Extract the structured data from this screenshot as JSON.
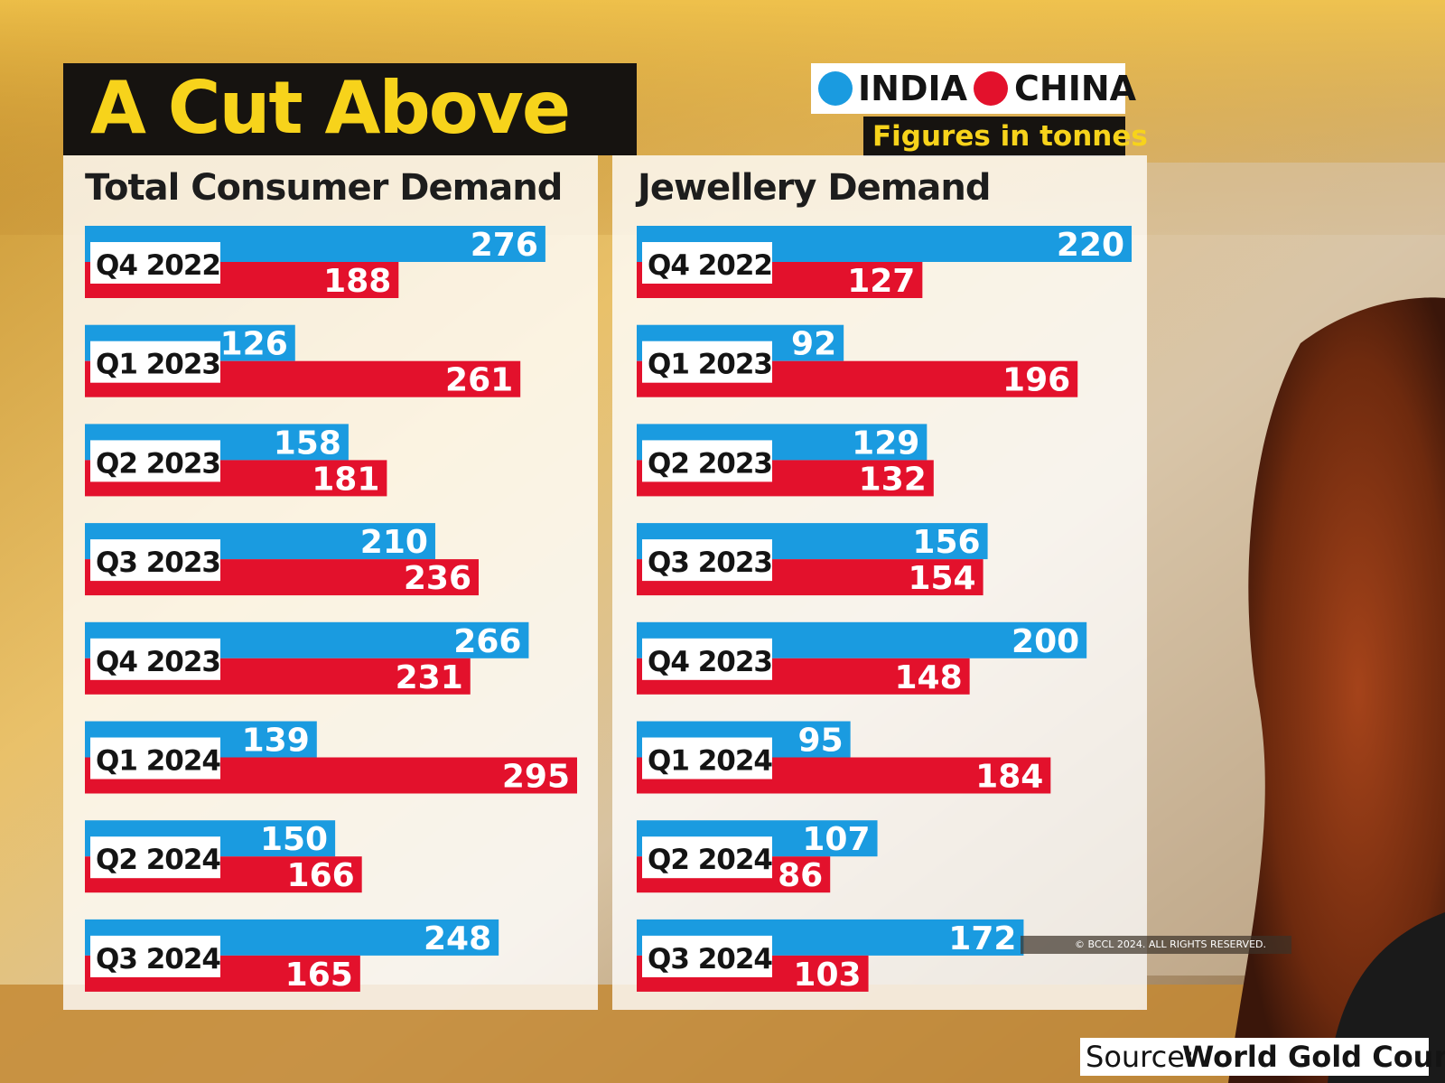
{
  "title": "A Cut Above",
  "legend": [
    {
      "name": "INDIA",
      "color": "#1a9be0"
    },
    {
      "name": "CHINA",
      "color": "#e3112c"
    }
  ],
  "units_note": "Figures in tonnes",
  "copyright": "© BCCL 2024. ALL RIGHTS RESERVED.",
  "source": {
    "label": "Source:",
    "value": "World Gold Council"
  },
  "chart_data": [
    {
      "type": "bar",
      "title": "Total Consumer Demand",
      "categories": [
        "Q4 2022",
        "Q1 2023",
        "Q2 2023",
        "Q3 2023",
        "Q4 2023",
        "Q1 2024",
        "Q2 2024",
        "Q3 2024"
      ],
      "series": [
        {
          "name": "INDIA",
          "values": [
            276,
            126,
            158,
            210,
            266,
            139,
            150,
            248
          ]
        },
        {
          "name": "CHINA",
          "values": [
            188,
            261,
            181,
            236,
            231,
            295,
            166,
            165
          ]
        }
      ]
    },
    {
      "type": "bar",
      "title": "Jewellery Demand",
      "categories": [
        "Q4 2022",
        "Q1 2023",
        "Q2 2023",
        "Q3 2023",
        "Q4 2023",
        "Q1 2024",
        "Q2 2024",
        "Q3 2024"
      ],
      "series": [
        {
          "name": "INDIA",
          "values": [
            220,
            92,
            129,
            156,
            200,
            95,
            107,
            172
          ]
        },
        {
          "name": "CHINA",
          "values": [
            127,
            196,
            132,
            154,
            148,
            184,
            86,
            103
          ]
        }
      ]
    }
  ]
}
